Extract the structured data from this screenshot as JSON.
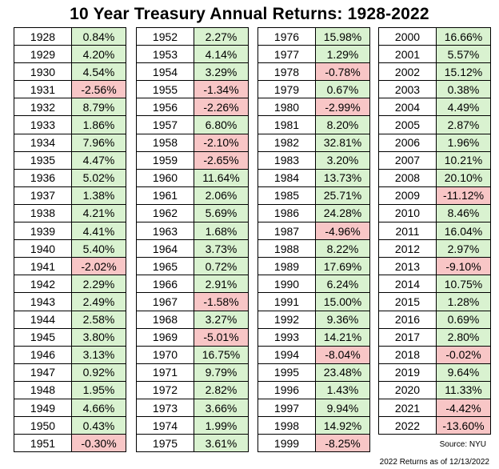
{
  "title": "10 Year Treasury Annual Returns: 1928-2022",
  "source": "Source: NYU",
  "note": "2022 Returns as of 12/13/2022",
  "colors": {
    "positive": "#d9f2d0",
    "negative": "#f8c6c6"
  },
  "chart_data": {
    "type": "table",
    "columns": [
      [
        [
          "1928",
          "0.84%"
        ],
        [
          "1929",
          "4.20%"
        ],
        [
          "1930",
          "4.54%"
        ],
        [
          "1931",
          "-2.56%"
        ],
        [
          "1932",
          "8.79%"
        ],
        [
          "1933",
          "1.86%"
        ],
        [
          "1934",
          "7.96%"
        ],
        [
          "1935",
          "4.47%"
        ],
        [
          "1936",
          "5.02%"
        ],
        [
          "1937",
          "1.38%"
        ],
        [
          "1938",
          "4.21%"
        ],
        [
          "1939",
          "4.41%"
        ],
        [
          "1940",
          "5.40%"
        ],
        [
          "1941",
          "-2.02%"
        ],
        [
          "1942",
          "2.29%"
        ],
        [
          "1943",
          "2.49%"
        ],
        [
          "1944",
          "2.58%"
        ],
        [
          "1945",
          "3.80%"
        ],
        [
          "1946",
          "3.13%"
        ],
        [
          "1947",
          "0.92%"
        ],
        [
          "1948",
          "1.95%"
        ],
        [
          "1949",
          "4.66%"
        ],
        [
          "1950",
          "0.43%"
        ],
        [
          "1951",
          "-0.30%"
        ]
      ],
      [
        [
          "1952",
          "2.27%"
        ],
        [
          "1953",
          "4.14%"
        ],
        [
          "1954",
          "3.29%"
        ],
        [
          "1955",
          "-1.34%"
        ],
        [
          "1956",
          "-2.26%"
        ],
        [
          "1957",
          "6.80%"
        ],
        [
          "1958",
          "-2.10%"
        ],
        [
          "1959",
          "-2.65%"
        ],
        [
          "1960",
          "11.64%"
        ],
        [
          "1961",
          "2.06%"
        ],
        [
          "1962",
          "5.69%"
        ],
        [
          "1963",
          "1.68%"
        ],
        [
          "1964",
          "3.73%"
        ],
        [
          "1965",
          "0.72%"
        ],
        [
          "1966",
          "2.91%"
        ],
        [
          "1967",
          "-1.58%"
        ],
        [
          "1968",
          "3.27%"
        ],
        [
          "1969",
          "-5.01%"
        ],
        [
          "1970",
          "16.75%"
        ],
        [
          "1971",
          "9.79%"
        ],
        [
          "1972",
          "2.82%"
        ],
        [
          "1973",
          "3.66%"
        ],
        [
          "1974",
          "1.99%"
        ],
        [
          "1975",
          "3.61%"
        ]
      ],
      [
        [
          "1976",
          "15.98%"
        ],
        [
          "1977",
          "1.29%"
        ],
        [
          "1978",
          "-0.78%"
        ],
        [
          "1979",
          "0.67%"
        ],
        [
          "1980",
          "-2.99%"
        ],
        [
          "1981",
          "8.20%"
        ],
        [
          "1982",
          "32.81%"
        ],
        [
          "1983",
          "3.20%"
        ],
        [
          "1984",
          "13.73%"
        ],
        [
          "1985",
          "25.71%"
        ],
        [
          "1986",
          "24.28%"
        ],
        [
          "1987",
          "-4.96%"
        ],
        [
          "1988",
          "8.22%"
        ],
        [
          "1989",
          "17.69%"
        ],
        [
          "1990",
          "6.24%"
        ],
        [
          "1991",
          "15.00%"
        ],
        [
          "1992",
          "9.36%"
        ],
        [
          "1993",
          "14.21%"
        ],
        [
          "1994",
          "-8.04%"
        ],
        [
          "1995",
          "23.48%"
        ],
        [
          "1996",
          "1.43%"
        ],
        [
          "1997",
          "9.94%"
        ],
        [
          "1998",
          "14.92%"
        ],
        [
          "1999",
          "-8.25%"
        ]
      ],
      [
        [
          "2000",
          "16.66%"
        ],
        [
          "2001",
          "5.57%"
        ],
        [
          "2002",
          "15.12%"
        ],
        [
          "2003",
          "0.38%"
        ],
        [
          "2004",
          "4.49%"
        ],
        [
          "2005",
          "2.87%"
        ],
        [
          "2006",
          "1.96%"
        ],
        [
          "2007",
          "10.21%"
        ],
        [
          "2008",
          "20.10%"
        ],
        [
          "2009",
          "-11.12%"
        ],
        [
          "2010",
          "8.46%"
        ],
        [
          "2011",
          "16.04%"
        ],
        [
          "2012",
          "2.97%"
        ],
        [
          "2013",
          "-9.10%"
        ],
        [
          "2014",
          "10.75%"
        ],
        [
          "2015",
          "1.28%"
        ],
        [
          "2016",
          "0.69%"
        ],
        [
          "2017",
          "2.80%"
        ],
        [
          "2018",
          "-0.02%"
        ],
        [
          "2019",
          "9.64%"
        ],
        [
          "2020",
          "11.33%"
        ],
        [
          "2021",
          "-4.42%"
        ],
        [
          "2022",
          "-13.60%"
        ]
      ]
    ]
  }
}
